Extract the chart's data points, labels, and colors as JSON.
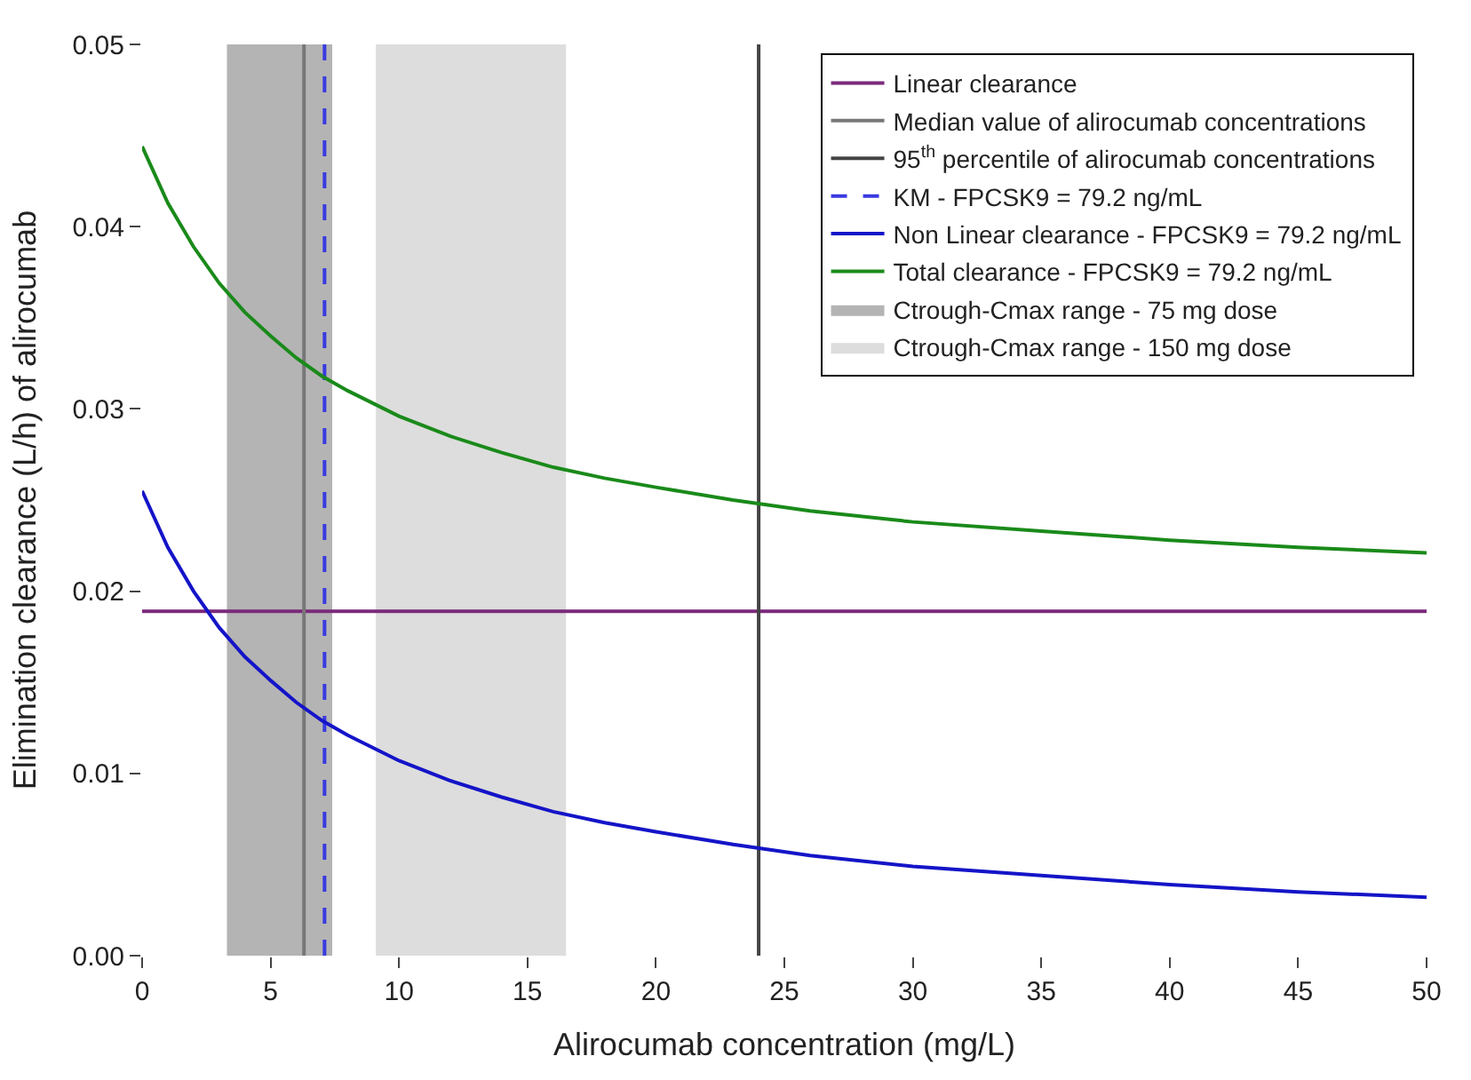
{
  "chart_data": {
    "type": "line",
    "xlabel": "Alirocumab concentration (mg/L)",
    "ylabel": "Elimination clearance (L/h) of alirocumab",
    "x": [
      0,
      1,
      2,
      3,
      4,
      5,
      6,
      7,
      8,
      10,
      12,
      14,
      16,
      18,
      20,
      23,
      26,
      30,
      35,
      40,
      45,
      50
    ],
    "series": [
      {
        "name": "Linear clearance",
        "color": "#7b2a7b",
        "values": [
          0.0189,
          0.0189,
          0.0189,
          0.0189,
          0.0189,
          0.0189,
          0.0189,
          0.0189,
          0.0189,
          0.0189,
          0.0189,
          0.0189,
          0.0189,
          0.0189,
          0.0189,
          0.0189,
          0.0189,
          0.0189,
          0.0189,
          0.0189,
          0.0189,
          0.0189
        ]
      },
      {
        "name": "Median value of alirocumab concentrations",
        "color": "#777777",
        "x": [
          6.3,
          6.3
        ],
        "values": [
          0,
          0.05
        ]
      },
      {
        "name": "95$^{th}$ percentile of alirocumab concentrations",
        "color": "#444444",
        "x": [
          24,
          24
        ],
        "values": [
          0,
          0.05
        ]
      },
      {
        "name": "KM - FPCSK9 = 79.2 ng/mL",
        "color": "#3a3ae0",
        "line_style": "dashed",
        "x": [
          7.1,
          7.1
        ],
        "values": [
          0,
          0.05
        ]
      },
      {
        "name": "Non Linear clearance - FPCSK9 = 79.2 ng/mL",
        "color": "#1414c8",
        "values": [
          0.0255,
          0.0224,
          0.02,
          0.018,
          0.0164,
          0.0151,
          0.0139,
          0.0129,
          0.0121,
          0.0107,
          0.0096,
          0.0087,
          0.0079,
          0.0073,
          0.0068,
          0.0061,
          0.0055,
          0.0049,
          0.0044,
          0.0039,
          0.0035,
          0.0032
        ]
      },
      {
        "name": "Total clearance - FPCSK9 = 79.2 ng/mL",
        "color": "#1a8a1a",
        "values": [
          0.0444,
          0.0413,
          0.0389,
          0.0369,
          0.0353,
          0.034,
          0.0328,
          0.0318,
          0.031,
          0.0296,
          0.0285,
          0.0276,
          0.0268,
          0.0262,
          0.0257,
          0.025,
          0.0244,
          0.0238,
          0.0233,
          0.0228,
          0.0224,
          0.0221
        ]
      },
      {
        "name": "Ctrough-Cmax range - 75 mg dose",
        "type": "area",
        "color": "#b4b4b4",
        "x": [
          3.3,
          7.4
        ],
        "values": [
          0.05,
          0.05
        ]
      },
      {
        "name": "Ctrough-Cmax range - 150 mg dose",
        "type": "area",
        "color": "#dddddd",
        "x": [
          9.1,
          16.5
        ],
        "values": [
          0.05,
          0.05
        ]
      }
    ],
    "xlim": [
      0,
      50
    ],
    "xticks": [
      0,
      5,
      10,
      15,
      20,
      25,
      30,
      35,
      40,
      45,
      50
    ],
    "ylim": [
      0,
      0.05
    ],
    "yticks": [
      {
        "value": 0,
        "label": "0.00"
      },
      {
        "value": 0.01,
        "label": "0.01"
      },
      {
        "value": 0.02,
        "label": "0.02"
      },
      {
        "value": 0.03,
        "label": "0.03"
      },
      {
        "value": 0.04,
        "label": "0.04"
      },
      {
        "value": 0.05,
        "label": "0.05"
      }
    ],
    "legend": "top right",
    "marker": "none",
    "line_style": "solid"
  }
}
